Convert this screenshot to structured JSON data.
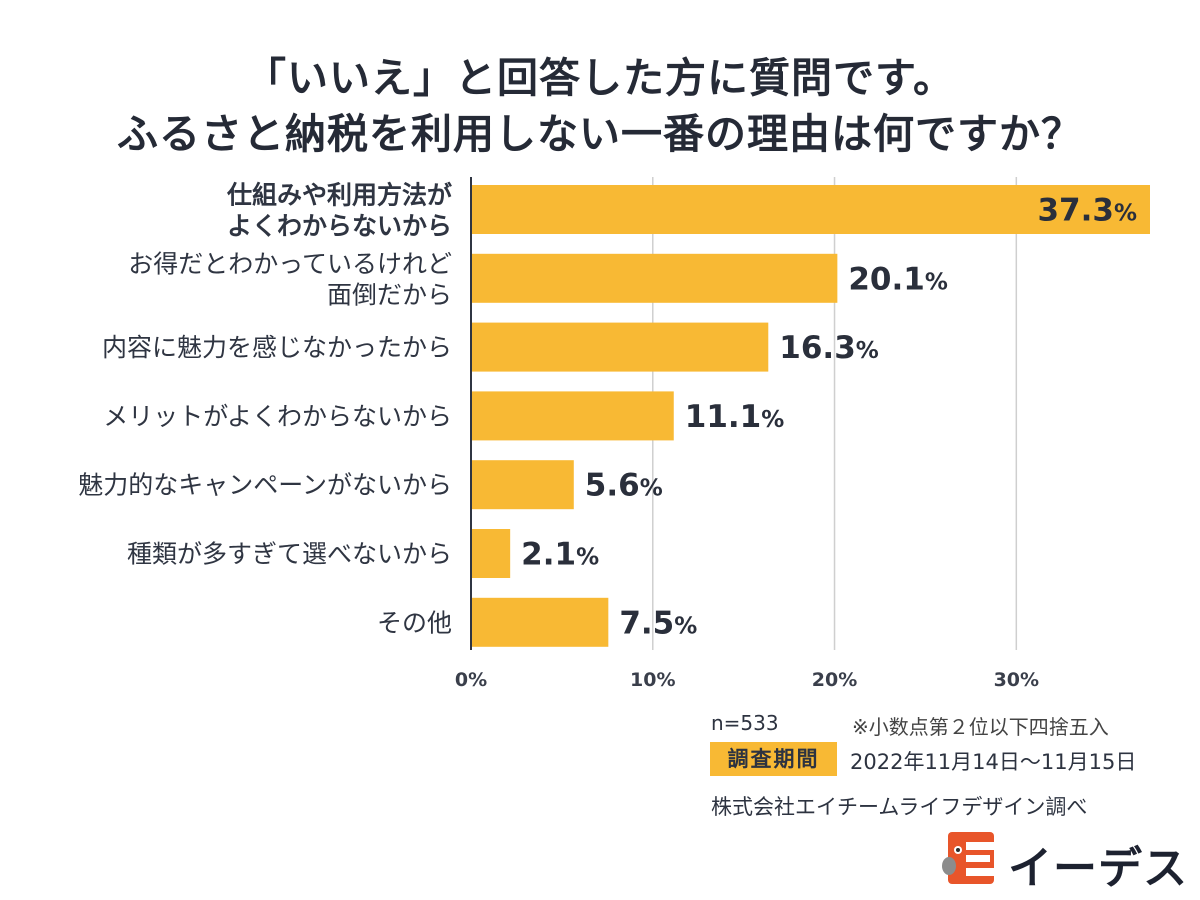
{
  "title": {
    "line1": "「いいえ」と回答した方に質問です。",
    "line2": "ふるさと納税を利用しない一番の理由は何ですか？"
  },
  "chart_data": {
    "type": "bar",
    "orientation": "horizontal",
    "categories": [
      [
        "仕組みや利用方法が",
        "よくわからないから"
      ],
      [
        "お得だとわかっているけれど",
        "面倒だから"
      ],
      [
        "内容に魅力を感じなかったから"
      ],
      [
        "メリットがよくわからないから"
      ],
      [
        "魅力的なキャンペーンがないから"
      ],
      [
        "種類が多すぎて選べないから"
      ],
      [
        "その他"
      ]
    ],
    "values": [
      37.3,
      20.1,
      16.3,
      11.1,
      5.6,
      2.1,
      7.5
    ],
    "value_labels": [
      "37.3",
      "20.1",
      "16.3",
      "11.1",
      "5.6",
      "2.1",
      "7.5"
    ],
    "value_suffix": "%",
    "xlim": [
      0,
      37.3
    ],
    "xticks": [
      0,
      10,
      20,
      30
    ],
    "xtick_labels": [
      "0%",
      "10%",
      "20%",
      "30%"
    ],
    "grid": true,
    "bar_color": "#f8b934"
  },
  "notes": {
    "sample_size": "n=533",
    "rounding": "※小数点第２位以下四捨五入",
    "period_badge": "調査期間",
    "period": "2022年11月14日～11月15日",
    "source": "株式会社エイチームライフデザイン調べ"
  },
  "logo": {
    "text": "イーデス",
    "icon": "edes-mascot-icon"
  }
}
